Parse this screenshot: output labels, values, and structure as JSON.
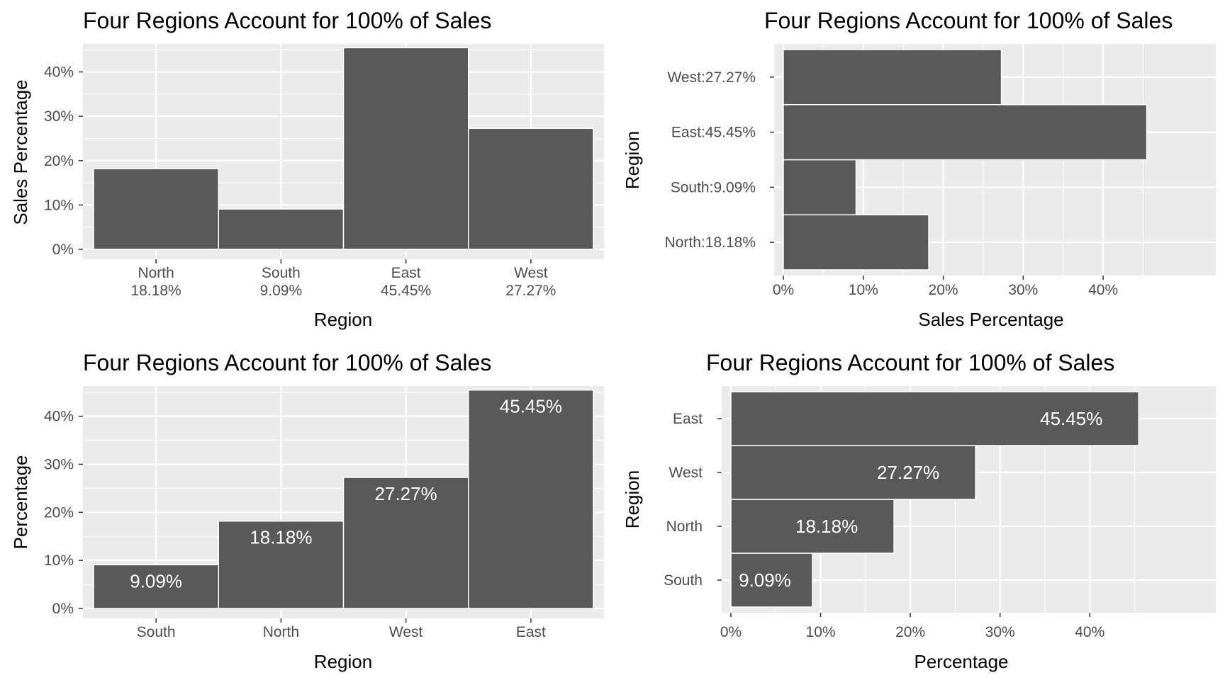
{
  "colors": {
    "bar": "#595959",
    "panel": "#ebebeb",
    "grid": "#ffffff",
    "bar_label": "#ffffff",
    "tick_text": "#4d4d4d"
  },
  "chart_data": [
    {
      "type": "bar",
      "orientation": "vertical",
      "title": "Four Regions Account for 100% of Sales",
      "xlabel": "Region",
      "ylabel": "Sales Percentage",
      "categories": [
        "North\n18.18%",
        "South\n9.09%",
        "East\n45.45%",
        "West\n27.27%"
      ],
      "values": [
        18.18,
        9.09,
        45.45,
        27.27
      ],
      "value_labels": [],
      "ylim": [
        0,
        47
      ],
      "ticks": [
        0,
        10,
        20,
        30,
        40
      ],
      "tick_labels": [
        "0%",
        "10%",
        "20%",
        "30%",
        "40%"
      ],
      "grid": true,
      "legend": "none"
    },
    {
      "type": "bar",
      "orientation": "horizontal",
      "title": "Four Regions Account for 100% of Sales",
      "xlabel": "Sales Percentage",
      "ylabel": "Region",
      "categories": [
        "North:18.18%",
        "South:9.09%",
        "East:45.45%",
        "West:27.27%"
      ],
      "values": [
        18.18,
        9.09,
        45.45,
        27.27
      ],
      "value_labels": [],
      "ylim": [
        0,
        47.5
      ],
      "ticks": [
        0,
        10,
        20,
        30,
        40
      ],
      "tick_labels": [
        "0%",
        "10%",
        "20%",
        "30%",
        "40%"
      ],
      "grid": true,
      "legend": "none"
    },
    {
      "type": "bar",
      "orientation": "vertical",
      "title": "Four Regions Account for 100% of Sales",
      "xlabel": "Region",
      "ylabel": "Percentage",
      "categories": [
        "South",
        "North",
        "West",
        "East"
      ],
      "values": [
        9.09,
        18.18,
        27.27,
        45.45
      ],
      "value_labels": [
        "9.09%",
        "18.18%",
        "27.27%",
        "45.45%"
      ],
      "ylim": [
        0,
        47
      ],
      "ticks": [
        0,
        10,
        20,
        30,
        40
      ],
      "tick_labels": [
        "0%",
        "10%",
        "20%",
        "30%",
        "40%"
      ],
      "grid": true,
      "legend": "none"
    },
    {
      "type": "bar",
      "orientation": "horizontal",
      "title": "Four Regions Account for 100% of Sales",
      "xlabel": "Percentage",
      "ylabel": "Region",
      "categories": [
        "South",
        "North",
        "West",
        "East"
      ],
      "values": [
        9.09,
        18.18,
        27.27,
        45.45
      ],
      "value_labels": [
        "9.09%",
        "18.18%",
        "27.27%",
        "45.45%"
      ],
      "ylim": [
        0,
        47.5
      ],
      "ticks": [
        0,
        10,
        20,
        30,
        40
      ],
      "tick_labels": [
        "0%",
        "10%",
        "20%",
        "30%",
        "40%"
      ],
      "grid": true,
      "legend": "none"
    }
  ]
}
